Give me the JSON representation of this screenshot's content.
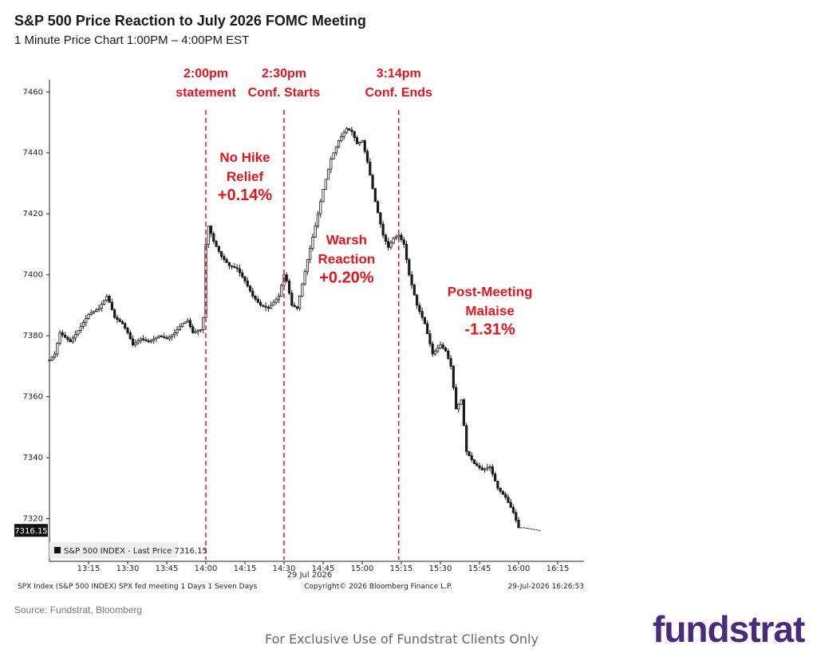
{
  "title": "S&P 500 Price Reaction to July 2026 FOMC Meeting",
  "subtitle": "1 Minute Price Chart 1:00PM – 4:00PM EST",
  "source": "Source: Fundstrat, Bloomberg",
  "disclaimer": "For Exclusive Use of Fundstrat Clients Only",
  "logo": "fundstrat",
  "colors": {
    "annotation": "#e8141c",
    "candle": "#1a1a1a",
    "logo": "#4a2a7a",
    "axis": "#222222"
  },
  "chart_data": {
    "type": "candlestick",
    "ylim": [
      7306,
      7464
    ],
    "yticks": [
      7320,
      7340,
      7360,
      7380,
      7400,
      7420,
      7440,
      7460
    ],
    "xlim": [
      "13:00",
      "16:25"
    ],
    "xticks": [
      "13:15",
      "13:30",
      "13:45",
      "14:00",
      "14:15",
      "14:30",
      "14:45",
      "15:00",
      "15:15",
      "15:30",
      "15:45",
      "16:00",
      "16:15"
    ],
    "date_label": "29 Jul 2026",
    "legend": "S&P 500 INDEX - Last Price 7316.15",
    "last_price": "7316.15",
    "footer_left": "SPX Index (S&P 500 INDEX) SPX fed meeting 1 Days 1 Seven Days",
    "footer_center": "Copyright© 2026 Bloomberg Finance L.P.",
    "footer_right": "29-Jul-2026 16:26:53",
    "markers": [
      {
        "time": "14:00",
        "line1": "2:00pm",
        "line2": "statement"
      },
      {
        "time": "14:30",
        "line1": "2:30pm",
        "line2": "Conf. Starts"
      },
      {
        "time": "15:14",
        "line1": "3:14pm",
        "line2": "Conf. Ends"
      }
    ],
    "annotations": [
      {
        "lines": [
          "No Hike",
          "Relief",
          "+0.14%"
        ],
        "time": "14:15",
        "value": 7437
      },
      {
        "lines": [
          "Warsh",
          "Reaction",
          "+0.20%"
        ],
        "time": "14:54",
        "value": 7410
      },
      {
        "lines": [
          "Post-Meeting",
          "Malaise",
          "-1.31%"
        ],
        "time": "15:49",
        "value": 7393
      }
    ],
    "path": [
      [
        "13:00",
        7372
      ],
      [
        "13:02",
        7374
      ],
      [
        "13:04",
        7381
      ],
      [
        "13:08",
        7378
      ],
      [
        "13:12",
        7383
      ],
      [
        "13:15",
        7387
      ],
      [
        "13:19",
        7389
      ],
      [
        "13:22",
        7393
      ],
      [
        "13:23",
        7391
      ],
      [
        "13:25",
        7386
      ],
      [
        "13:28",
        7384
      ],
      [
        "13:30",
        7381
      ],
      [
        "13:32",
        7377
      ],
      [
        "13:35",
        7379
      ],
      [
        "13:38",
        7378
      ],
      [
        "13:42",
        7380
      ],
      [
        "13:45",
        7379
      ],
      [
        "13:48",
        7381
      ],
      [
        "13:51",
        7384
      ],
      [
        "13:53",
        7385
      ],
      [
        "13:55",
        7381
      ],
      [
        "13:58",
        7382
      ],
      [
        "13:59",
        7386
      ],
      [
        "14:00",
        7410
      ],
      [
        "14:01",
        7416
      ],
      [
        "14:03",
        7411
      ],
      [
        "14:06",
        7406
      ],
      [
        "14:09",
        7403
      ],
      [
        "14:12",
        7402
      ],
      [
        "14:15",
        7398
      ],
      [
        "14:18",
        7393
      ],
      [
        "14:21",
        7390
      ],
      [
        "14:24",
        7389
      ],
      [
        "14:26",
        7391
      ],
      [
        "14:28",
        7393
      ],
      [
        "14:30",
        7400
      ],
      [
        "14:31",
        7398
      ],
      [
        "14:33",
        7390
      ],
      [
        "14:35",
        7389
      ],
      [
        "14:37",
        7397
      ],
      [
        "14:39",
        7405
      ],
      [
        "14:42",
        7416
      ],
      [
        "14:45",
        7428
      ],
      [
        "14:48",
        7438
      ],
      [
        "14:51",
        7444
      ],
      [
        "14:54",
        7448
      ],
      [
        "14:56",
        7447
      ],
      [
        "14:58",
        7443
      ],
      [
        "15:00",
        7444
      ],
      [
        "15:02",
        7437
      ],
      [
        "15:05",
        7424
      ],
      [
        "15:08",
        7413
      ],
      [
        "15:10",
        7409
      ],
      [
        "15:12",
        7412
      ],
      [
        "15:14",
        7413
      ],
      [
        "15:16",
        7410
      ],
      [
        "15:18",
        7400
      ],
      [
        "15:21",
        7390
      ],
      [
        "15:24",
        7384
      ],
      [
        "15:27",
        7374
      ],
      [
        "15:30",
        7377
      ],
      [
        "15:32",
        7375
      ],
      [
        "15:34",
        7370
      ],
      [
        "15:36",
        7356
      ],
      [
        "15:38",
        7359
      ],
      [
        "15:40",
        7342
      ],
      [
        "15:43",
        7338
      ],
      [
        "15:46",
        7336
      ],
      [
        "15:49",
        7337
      ],
      [
        "15:52",
        7330
      ],
      [
        "15:55",
        7327
      ],
      [
        "15:58",
        7322
      ],
      [
        "16:00",
        7317
      ],
      [
        "16:02",
        7317
      ],
      [
        "16:08",
        7316.15
      ]
    ]
  }
}
